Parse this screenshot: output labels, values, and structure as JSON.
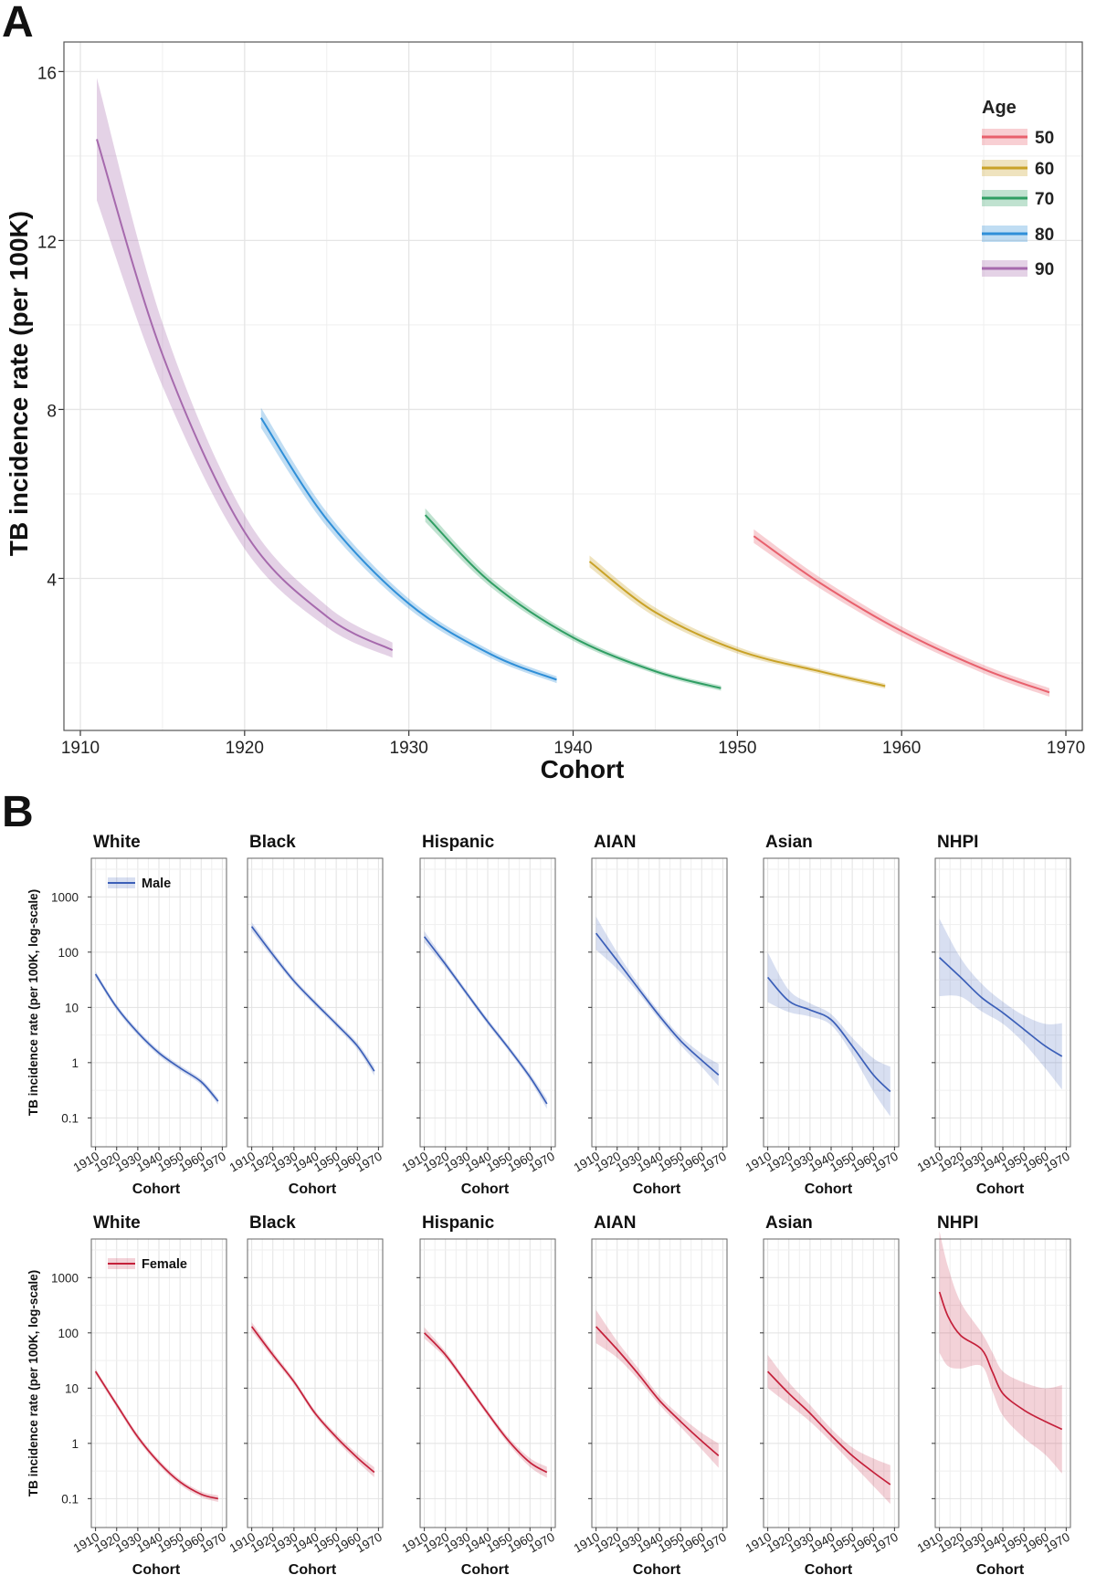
{
  "panels": {
    "a_label": "A",
    "b_label": "B"
  },
  "colors": {
    "age50": "#e8616d",
    "age60": "#c9a227",
    "age70": "#2f9e63",
    "age80": "#2f8fd8",
    "age90": "#a66aad",
    "male": "#3b5fb8",
    "female": "#c4203a",
    "grid": "#e5e5e5",
    "frame": "#555555"
  },
  "chart_data": [
    {
      "type": "line",
      "panel": "A",
      "xlabel": "Cohort",
      "ylabel": "TB incidence rate (per 100K)",
      "x_ticks": [
        "1910",
        "1920",
        "1930",
        "1940",
        "1950",
        "1960",
        "1970"
      ],
      "y_ticks": [
        "4",
        "8",
        "12",
        "16"
      ],
      "xlim": [
        1909,
        1971
      ],
      "ylim": [
        0.4,
        16.7
      ],
      "legend_title": "Age",
      "legend_position": "top-right",
      "grid": true,
      "series": [
        {
          "name": "50",
          "color_key": "age50",
          "x": [
            1951,
            1955,
            1960,
            1965,
            1969
          ],
          "y": [
            5.0,
            3.9,
            2.75,
            1.85,
            1.3
          ],
          "band": [
            0.16,
            0.13,
            0.11,
            0.1,
            0.1
          ]
        },
        {
          "name": "60",
          "color_key": "age60",
          "x": [
            1941,
            1945,
            1950,
            1955,
            1959
          ],
          "y": [
            4.4,
            3.2,
            2.3,
            1.8,
            1.45
          ],
          "band": [
            0.14,
            0.11,
            0.08,
            0.06,
            0.06
          ]
        },
        {
          "name": "70",
          "color_key": "age70",
          "x": [
            1931,
            1935,
            1940,
            1945,
            1949
          ],
          "y": [
            5.5,
            3.9,
            2.6,
            1.8,
            1.4
          ],
          "band": [
            0.16,
            0.11,
            0.08,
            0.06,
            0.06
          ]
        },
        {
          "name": "80",
          "color_key": "age80",
          "x": [
            1921,
            1925,
            1930,
            1935,
            1939
          ],
          "y": [
            7.8,
            5.4,
            3.4,
            2.2,
            1.6
          ],
          "band": [
            0.24,
            0.17,
            0.12,
            0.09,
            0.08
          ]
        },
        {
          "name": "90",
          "color_key": "age90",
          "x": [
            1911,
            1915,
            1920,
            1925,
            1929
          ],
          "y": [
            14.4,
            9.3,
            5.1,
            3.1,
            2.3
          ],
          "band": [
            1.45,
            0.75,
            0.4,
            0.25,
            0.18
          ]
        }
      ]
    },
    {
      "type": "line",
      "panel": "B",
      "scale": "log",
      "xlabel": "Cohort",
      "ylabel": "TB incidence rate (per 100K, log-scale)",
      "x_ticks": [
        "1910",
        "1920",
        "1930",
        "1940",
        "1950",
        "1960",
        "1970"
      ],
      "y_ticks": [
        "0.1",
        "1",
        "10",
        "100",
        "1000"
      ],
      "xlim": [
        1908,
        1972
      ],
      "ylim": [
        0.03,
        5000
      ],
      "grid": true,
      "rows": [
        {
          "legend": "Male",
          "color_key": "male",
          "facets": [
            {
              "title": "White",
              "x": [
                1910,
                1920,
                1930,
                1940,
                1950,
                1960,
                1968
              ],
              "y": [
                40,
                10,
                3.5,
                1.5,
                0.8,
                0.45,
                0.2
              ],
              "band": [
                0.05,
                0.05,
                0.05,
                0.05,
                0.05,
                0.05,
                0.06
              ]
            },
            {
              "title": "Black",
              "x": [
                1910,
                1920,
                1930,
                1940,
                1950,
                1960,
                1968
              ],
              "y": [
                290,
                90,
                30,
                12,
                5,
                2,
                0.7
              ],
              "band": [
                0.08,
                0.06,
                0.05,
                0.05,
                0.05,
                0.06,
                0.08
              ]
            },
            {
              "title": "Hispanic",
              "x": [
                1910,
                1920,
                1930,
                1940,
                1950,
                1960,
                1968
              ],
              "y": [
                190,
                60,
                18,
                5.5,
                1.8,
                0.55,
                0.18
              ],
              "band": [
                0.1,
                0.06,
                0.05,
                0.05,
                0.05,
                0.06,
                0.09
              ]
            },
            {
              "title": "AIAN",
              "x": [
                1910,
                1920,
                1930,
                1940,
                1950,
                1960,
                1968
              ],
              "y": [
                220,
                70,
                22,
                7,
                2.5,
                1.1,
                0.6
              ],
              "band": [
                0.3,
                0.15,
                0.08,
                0.07,
                0.08,
                0.12,
                0.2
              ]
            },
            {
              "title": "Asian",
              "x": [
                1910,
                1920,
                1930,
                1940,
                1950,
                1960,
                1968
              ],
              "y": [
                35,
                13,
                9,
                6,
                2,
                0.6,
                0.3
              ],
              "band": [
                0.45,
                0.2,
                0.12,
                0.1,
                0.15,
                0.3,
                0.45
              ]
            },
            {
              "title": "NHPI",
              "x": [
                1910,
                1920,
                1930,
                1940,
                1950,
                1960,
                1968
              ],
              "y": [
                80,
                35,
                15,
                8,
                4,
                2,
                1.3
              ],
              "band": [
                0.7,
                0.35,
                0.25,
                0.2,
                0.25,
                0.4,
                0.6
              ]
            }
          ]
        },
        {
          "legend": "Female",
          "color_key": "female",
          "facets": [
            {
              "title": "White",
              "x": [
                1910,
                1920,
                1930,
                1940,
                1950,
                1960,
                1968
              ],
              "y": [
                20,
                5,
                1.3,
                0.45,
                0.2,
                0.12,
                0.1
              ],
              "band": [
                0.05,
                0.05,
                0.05,
                0.05,
                0.05,
                0.05,
                0.06
              ]
            },
            {
              "title": "Black",
              "x": [
                1910,
                1920,
                1930,
                1940,
                1950,
                1960,
                1968
              ],
              "y": [
                130,
                40,
                13,
                3.5,
                1.3,
                0.55,
                0.3
              ],
              "band": [
                0.08,
                0.06,
                0.05,
                0.05,
                0.06,
                0.07,
                0.09
              ]
            },
            {
              "title": "Hispanic",
              "x": [
                1910,
                1920,
                1930,
                1940,
                1950,
                1960,
                1968
              ],
              "y": [
                100,
                40,
                12,
                3.5,
                1.1,
                0.45,
                0.3
              ],
              "band": [
                0.1,
                0.06,
                0.05,
                0.05,
                0.06,
                0.08,
                0.1
              ]
            },
            {
              "title": "AIAN",
              "x": [
                1910,
                1920,
                1930,
                1940,
                1950,
                1960,
                1968
              ],
              "y": [
                130,
                50,
                18,
                6,
                2.5,
                1.1,
                0.6
              ],
              "band": [
                0.3,
                0.15,
                0.1,
                0.08,
                0.1,
                0.15,
                0.22
              ]
            },
            {
              "title": "Asian",
              "x": [
                1910,
                1920,
                1930,
                1940,
                1950,
                1960,
                1968
              ],
              "y": [
                20,
                8,
                3.5,
                1.4,
                0.6,
                0.3,
                0.18
              ],
              "band": [
                0.3,
                0.2,
                0.15,
                0.12,
                0.15,
                0.25,
                0.35
              ]
            },
            {
              "title": "NHPI",
              "x": [
                1910,
                1914,
                1920,
                1930,
                1935,
                1940,
                1950,
                1960,
                1968
              ],
              "y": [
                550,
                200,
                90,
                50,
                20,
                8,
                4,
                2.5,
                1.8
              ],
              "band": [
                1.1,
                0.9,
                0.6,
                0.3,
                0.35,
                0.4,
                0.5,
                0.6,
                0.8
              ]
            }
          ]
        }
      ]
    }
  ]
}
